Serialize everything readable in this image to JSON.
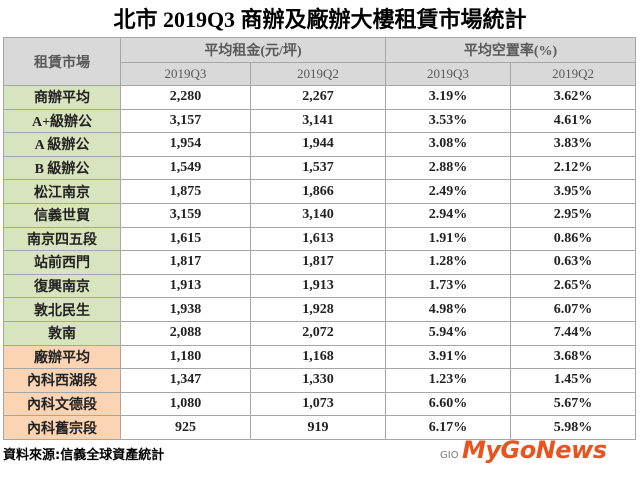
{
  "title": "北市 2019Q3 商辦及廠辦大樓租賃市場統計",
  "table": {
    "corner": "租賃市場",
    "groups": [
      "平均租金(元/坪)",
      "平均空置率(%)"
    ],
    "periods": [
      "2019Q3",
      "2019Q2",
      "2019Q3",
      "2019Q2"
    ],
    "sections": [
      {
        "rows": [
          [
            "商辦平均",
            "2,280",
            "2,267",
            "3.19%",
            "3.62%"
          ],
          [
            "A+級辦公",
            "3,157",
            "3,141",
            "3.53%",
            "4.61%"
          ],
          [
            "A 級辦公",
            "1,954",
            "1,944",
            "3.08%",
            "3.83%"
          ],
          [
            "B 級辦公",
            "1,549",
            "1,537",
            "2.88%",
            "2.12%"
          ],
          [
            "松江南京",
            "1,875",
            "1,866",
            "2.49%",
            "3.95%"
          ],
          [
            "信義世貿",
            "3,159",
            "3,140",
            "2.94%",
            "2.95%"
          ],
          [
            "南京四五段",
            "1,615",
            "1,613",
            "1.91%",
            "0.86%"
          ],
          [
            "站前西門",
            "1,817",
            "1,817",
            "1.28%",
            "0.63%"
          ],
          [
            "復興南京",
            "1,913",
            "1,913",
            "1.73%",
            "2.65%"
          ],
          [
            "敦北民生",
            "1,938",
            "1,928",
            "4.98%",
            "6.07%"
          ],
          [
            "敦南",
            "2,088",
            "2,072",
            "5.94%",
            "7.44%"
          ]
        ]
      },
      {
        "rows": [
          [
            "廠辦平均",
            "1,180",
            "1,168",
            "3.91%",
            "3.68%"
          ],
          [
            "內科西湖段",
            "1,347",
            "1,330",
            "1.23%",
            "1.45%"
          ],
          [
            "內科文德段",
            "1,080",
            "1,073",
            "6.60%",
            "5.67%"
          ],
          [
            "內科舊宗段",
            "925",
            "919",
            "6.17%",
            "5.98%"
          ]
        ]
      }
    ]
  },
  "source": "資料來源:信義全球資產統計",
  "logo": {
    "mark": "GIO",
    "name": "MyGoNews"
  }
}
